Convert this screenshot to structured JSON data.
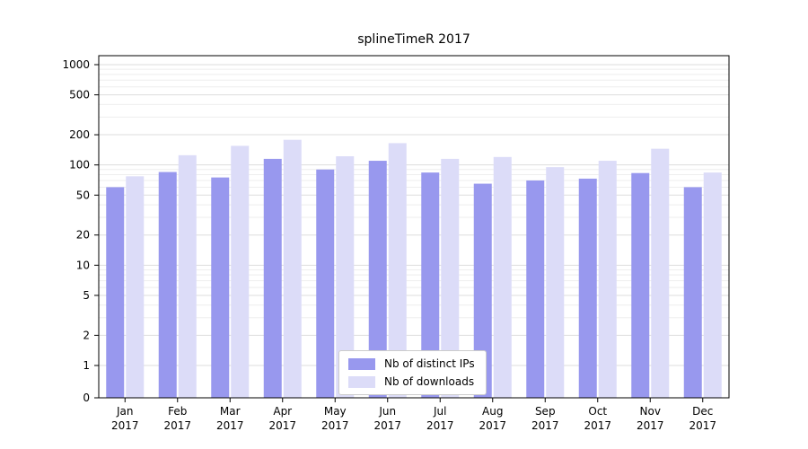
{
  "chart_data": {
    "type": "bar",
    "title": "splineTimeR 2017",
    "categories": [
      "Jan",
      "Feb",
      "Mar",
      "Apr",
      "May",
      "Jun",
      "Jul",
      "Aug",
      "Sep",
      "Oct",
      "Nov",
      "Dec"
    ],
    "category_year": "2017",
    "series": [
      {
        "name": "Nb of distinct IPs",
        "color": "#9898ee",
        "values": [
          60,
          85,
          75,
          115,
          90,
          110,
          84,
          65,
          70,
          73,
          83,
          60
        ]
      },
      {
        "name": "Nb of downloads",
        "color": "#dcdcf8",
        "values": [
          77,
          125,
          155,
          178,
          122,
          165,
          115,
          120,
          95,
          110,
          145,
          84
        ]
      }
    ],
    "yticks": [
      0,
      1,
      2,
      5,
      10,
      20,
      50,
      100,
      200,
      500,
      1000
    ],
    "ylim": [
      0,
      1000
    ],
    "yscale": "symlog",
    "grid": true,
    "legend_position": "bottom-center",
    "colors": {
      "grid_major": "#dddddd",
      "grid_minor": "#eeeeee",
      "axis_border": "#000000",
      "text": "#000000"
    }
  }
}
